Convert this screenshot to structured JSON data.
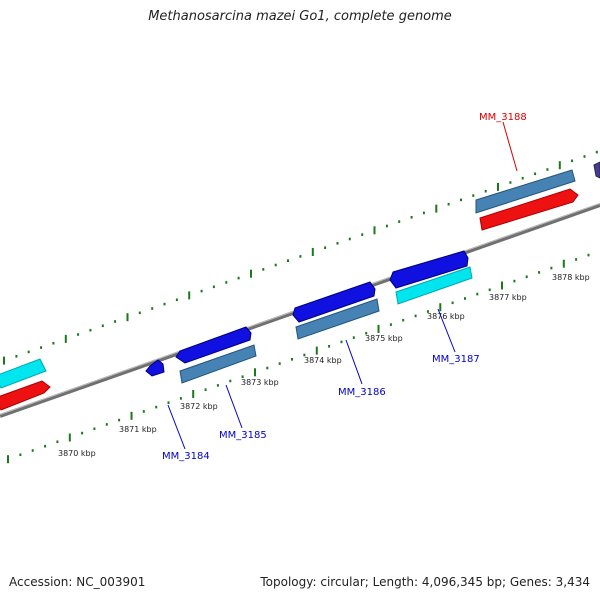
{
  "title": "Methanosarcina mazei Go1, complete genome",
  "footer": {
    "accession": "Accession: NC_003901",
    "summary": "Topology: circular; Length: 4,096,345 bp; Genes: 3,434"
  },
  "colors": {
    "backbone": "#808080",
    "tick": "#1a7a1a",
    "gene_blue": "#1010e0",
    "gene_steel": "#4682b4",
    "gene_cyan": "#00e5ee",
    "gene_red": "#ee1111",
    "gene_slate": "#483d8b",
    "label_blue": "#0000cc",
    "label_red": "#dd0000"
  },
  "scale_labels": [
    "3870 kbp",
    "3871 kbp",
    "3872 kbp",
    "3873 kbp",
    "3874 kbp",
    "3875 kbp",
    "3876 kbp",
    "3877 kbp",
    "3878 kbp"
  ],
  "gene_labels": [
    {
      "text": "MM_3184",
      "color": "label_blue"
    },
    {
      "text": "MM_3185",
      "color": "label_blue"
    },
    {
      "text": "MM_3186",
      "color": "label_blue"
    },
    {
      "text": "MM_3187",
      "color": "label_blue"
    },
    {
      "text": "MM_3188",
      "color": "label_red"
    }
  ]
}
